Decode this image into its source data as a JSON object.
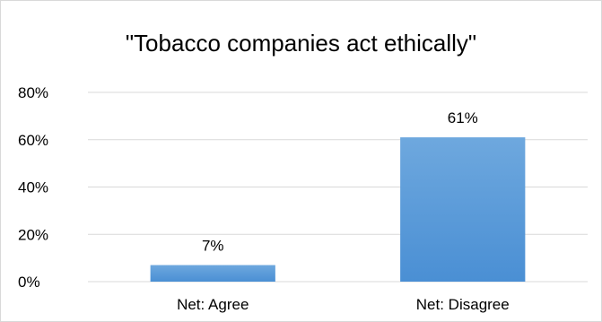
{
  "chart_data": {
    "type": "bar",
    "title": "\"Tobacco companies act ethically\"",
    "categories": [
      "Net: Agree",
      "Net: Disagree"
    ],
    "values": [
      7,
      61
    ],
    "value_labels": [
      "7%",
      "61%"
    ],
    "ylim": [
      0,
      80
    ],
    "yticks": [
      0,
      20,
      40,
      60,
      80
    ],
    "ytick_labels": [
      "0%",
      "20%",
      "40%",
      "60%",
      "80%"
    ],
    "xlabel": "",
    "ylabel": "",
    "grid": true,
    "legend": "none",
    "colors": {
      "bar_top": "#6ea8de",
      "bar_bottom": "#4a8fd4",
      "grid": "#d9d9d9",
      "text": "#000000"
    }
  }
}
